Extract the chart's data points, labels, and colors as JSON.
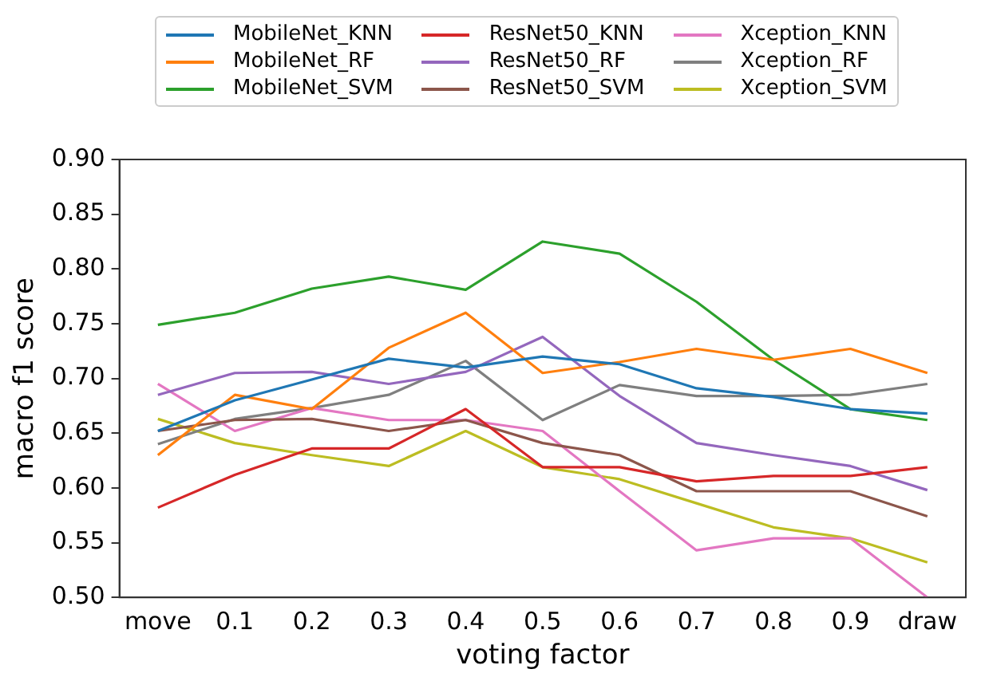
{
  "chart_data": {
    "type": "line",
    "xlabel": "voting factor",
    "ylabel": "macro f1 score",
    "categories": [
      "move",
      "0.1",
      "0.2",
      "0.3",
      "0.4",
      "0.5",
      "0.6",
      "0.7",
      "0.8",
      "0.9",
      "draw"
    ],
    "ylim": [
      0.5,
      0.9
    ],
    "yticks": [
      {
        "value": 0.5,
        "label": "0.50"
      },
      {
        "value": 0.55,
        "label": "0.55"
      },
      {
        "value": 0.6,
        "label": "0.60"
      },
      {
        "value": 0.65,
        "label": "0.65"
      },
      {
        "value": 0.7,
        "label": "0.70"
      },
      {
        "value": 0.75,
        "label": "0.75"
      },
      {
        "value": 0.8,
        "label": "0.80"
      },
      {
        "value": 0.85,
        "label": "0.85"
      },
      {
        "value": 0.9,
        "label": "0.90"
      }
    ],
    "grid": false,
    "legend": "top",
    "marker": "none",
    "line_style": "solid",
    "series": [
      {
        "name": "MobileNet_KNN",
        "color": "#1f77b4",
        "values": [
          0.652,
          0.68,
          0.699,
          0.718,
          0.71,
          0.72,
          0.713,
          0.691,
          0.683,
          0.672,
          0.668
        ]
      },
      {
        "name": "MobileNet_RF",
        "color": "#ff7f0e",
        "values": [
          0.63,
          0.685,
          0.672,
          0.728,
          0.76,
          0.705,
          0.715,
          0.727,
          0.717,
          0.727,
          0.705
        ]
      },
      {
        "name": "MobileNet_SVM",
        "color": "#2ca02c",
        "values": [
          0.749,
          0.76,
          0.782,
          0.793,
          0.781,
          0.825,
          0.814,
          0.77,
          0.717,
          0.672,
          0.662
        ]
      },
      {
        "name": "ResNet50_KNN",
        "color": "#d62728",
        "values": [
          0.582,
          0.612,
          0.636,
          0.636,
          0.672,
          0.619,
          0.619,
          0.606,
          0.611,
          0.611,
          0.619
        ]
      },
      {
        "name": "ResNet50_RF",
        "color": "#9467bd",
        "values": [
          0.685,
          0.705,
          0.706,
          0.695,
          0.706,
          0.738,
          0.684,
          0.641,
          0.63,
          0.62,
          0.598
        ]
      },
      {
        "name": "ResNet50_SVM",
        "color": "#8c564b",
        "values": [
          0.652,
          0.662,
          0.663,
          0.652,
          0.662,
          0.641,
          0.63,
          0.597,
          0.597,
          0.597,
          0.574
        ]
      },
      {
        "name": "Xception_KNN",
        "color": "#e377c2",
        "values": [
          0.695,
          0.652,
          0.673,
          0.662,
          0.662,
          0.652,
          0.597,
          0.543,
          0.554,
          0.554,
          0.5
        ]
      },
      {
        "name": "Xception_RF",
        "color": "#7f7f7f",
        "values": [
          0.64,
          0.663,
          0.673,
          0.685,
          0.716,
          0.662,
          0.694,
          0.684,
          0.684,
          0.685,
          0.695
        ]
      },
      {
        "name": "Xception_SVM",
        "color": "#bcbd22",
        "values": [
          0.663,
          0.641,
          0.63,
          0.62,
          0.652,
          0.619,
          0.608,
          0.586,
          0.564,
          0.554,
          0.532
        ]
      }
    ]
  }
}
